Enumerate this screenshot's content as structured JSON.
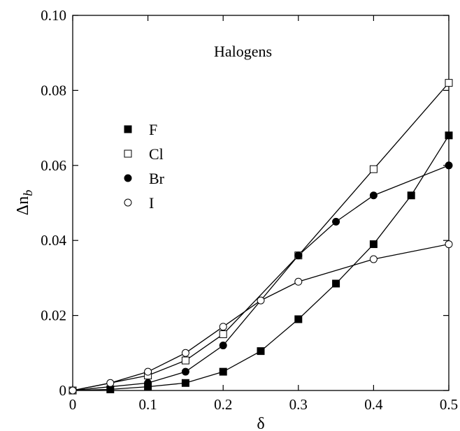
{
  "chart_data": {
    "type": "line",
    "title": "",
    "xlabel": "δ",
    "ylabel": "Δn",
    "ylabel_sub": "b",
    "xlim": [
      0,
      0.5
    ],
    "ylim": [
      0,
      0.1
    ],
    "xticks": [
      0,
      0.1,
      0.2,
      0.3,
      0.4,
      0.5
    ],
    "xtick_labels": [
      "0",
      "0.1",
      "0.2",
      "0.3",
      "0.4",
      "0.5"
    ],
    "yticks": [
      0,
      0.02,
      0.04,
      0.06,
      0.08,
      0.1
    ],
    "ytick_labels": [
      "0",
      "0.02",
      "0.04",
      "0.06",
      "0.08",
      "0.10"
    ],
    "grid": false,
    "legend_position": "left",
    "annotation": "Halogens",
    "series": [
      {
        "name": "F",
        "marker": "square-filled",
        "x": [
          0,
          0.05,
          0.1,
          0.15,
          0.2,
          0.25,
          0.3,
          0.35,
          0.4,
          0.45,
          0.5
        ],
        "y": [
          0,
          0.0003,
          0.001,
          0.002,
          0.005,
          0.0105,
          0.019,
          0.0285,
          0.039,
          0.052,
          0.068
        ]
      },
      {
        "name": "Cl",
        "marker": "square-open",
        "x": [
          0,
          0.1,
          0.15,
          0.2,
          0.3,
          0.4,
          0.5
        ],
        "y": [
          0,
          0.004,
          0.008,
          0.015,
          0.036,
          0.059,
          0.082
        ]
      },
      {
        "name": "Br",
        "marker": "circle-filled",
        "x": [
          0,
          0.1,
          0.15,
          0.2,
          0.3,
          0.35,
          0.4,
          0.5
        ],
        "y": [
          0,
          0.002,
          0.005,
          0.012,
          0.036,
          0.045,
          0.052,
          0.06
        ]
      },
      {
        "name": "I",
        "marker": "circle-open",
        "x": [
          0,
          0.05,
          0.1,
          0.15,
          0.2,
          0.25,
          0.3,
          0.4,
          0.5
        ],
        "y": [
          0,
          0.002,
          0.005,
          0.01,
          0.017,
          0.024,
          0.029,
          0.035,
          0.039
        ]
      }
    ]
  }
}
